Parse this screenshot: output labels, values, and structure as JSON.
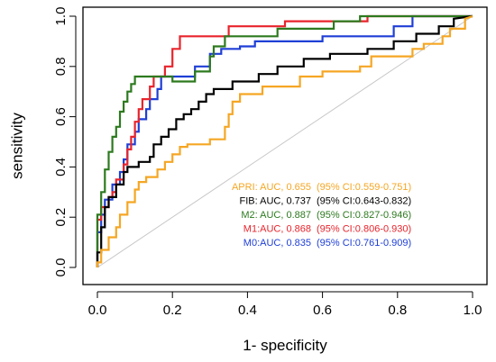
{
  "chart_data": {
    "type": "line",
    "xlabel": "1- specificity",
    "ylabel": "sensitivity",
    "xlim": [
      0,
      1
    ],
    "ylim": [
      0,
      1
    ],
    "x_ticks": [
      "0.0",
      "0.2",
      "0.4",
      "0.6",
      "0.8",
      "1.0"
    ],
    "y_ticks": [
      "0.0",
      "0.2",
      "0.4",
      "0.6",
      "0.8",
      "1.0"
    ],
    "grid": false,
    "legend_position": "bottom-right",
    "reference_line": {
      "from": [
        0,
        0
      ],
      "to": [
        1,
        1
      ],
      "color": "#c8c8c8"
    },
    "series": [
      {
        "label": "APRI: AUC, 0.655",
        "ci": "(95% CI:0.559-0.751)",
        "color": "#f5a623",
        "points": [
          [
            0,
            0
          ],
          [
            0,
            0.02
          ],
          [
            0.01,
            0.02
          ],
          [
            0.01,
            0.07
          ],
          [
            0.03,
            0.07
          ],
          [
            0.03,
            0.12
          ],
          [
            0.05,
            0.12
          ],
          [
            0.05,
            0.16
          ],
          [
            0.06,
            0.16
          ],
          [
            0.06,
            0.21
          ],
          [
            0.08,
            0.21
          ],
          [
            0.08,
            0.26
          ],
          [
            0.1,
            0.26
          ],
          [
            0.1,
            0.31
          ],
          [
            0.11,
            0.31
          ],
          [
            0.11,
            0.34
          ],
          [
            0.13,
            0.34
          ],
          [
            0.13,
            0.36
          ],
          [
            0.16,
            0.36
          ],
          [
            0.16,
            0.39
          ],
          [
            0.18,
            0.39
          ],
          [
            0.18,
            0.42
          ],
          [
            0.2,
            0.42
          ],
          [
            0.2,
            0.45
          ],
          [
            0.22,
            0.45
          ],
          [
            0.22,
            0.48
          ],
          [
            0.24,
            0.48
          ],
          [
            0.24,
            0.49
          ],
          [
            0.3,
            0.49
          ],
          [
            0.3,
            0.51
          ],
          [
            0.34,
            0.51
          ],
          [
            0.34,
            0.56
          ],
          [
            0.35,
            0.56
          ],
          [
            0.35,
            0.61
          ],
          [
            0.36,
            0.61
          ],
          [
            0.36,
            0.66
          ],
          [
            0.38,
            0.66
          ],
          [
            0.38,
            0.69
          ],
          [
            0.44,
            0.69
          ],
          [
            0.44,
            0.72
          ],
          [
            0.54,
            0.72
          ],
          [
            0.54,
            0.76
          ],
          [
            0.6,
            0.76
          ],
          [
            0.6,
            0.78
          ],
          [
            0.7,
            0.78
          ],
          [
            0.7,
            0.8
          ],
          [
            0.73,
            0.8
          ],
          [
            0.73,
            0.84
          ],
          [
            0.84,
            0.84
          ],
          [
            0.84,
            0.87
          ],
          [
            0.87,
            0.87
          ],
          [
            0.87,
            0.89
          ],
          [
            0.92,
            0.89
          ],
          [
            0.92,
            0.92
          ],
          [
            0.94,
            0.92
          ],
          [
            0.94,
            0.95
          ],
          [
            0.98,
            0.95
          ],
          [
            0.98,
            0.99
          ],
          [
            1,
            1
          ]
        ]
      },
      {
        "label": "FIB: AUC, 0.737",
        "ci": "(95% CI:0.643-0.832)",
        "color": "#000000",
        "points": [
          [
            0,
            0
          ],
          [
            0,
            0.06
          ],
          [
            0.01,
            0.06
          ],
          [
            0.01,
            0.16
          ],
          [
            0.02,
            0.16
          ],
          [
            0.02,
            0.24
          ],
          [
            0.03,
            0.24
          ],
          [
            0.03,
            0.28
          ],
          [
            0.05,
            0.28
          ],
          [
            0.05,
            0.33
          ],
          [
            0.07,
            0.33
          ],
          [
            0.07,
            0.38
          ],
          [
            0.08,
            0.38
          ],
          [
            0.08,
            0.4
          ],
          [
            0.11,
            0.4
          ],
          [
            0.11,
            0.42
          ],
          [
            0.14,
            0.42
          ],
          [
            0.14,
            0.44
          ],
          [
            0.15,
            0.44
          ],
          [
            0.15,
            0.49
          ],
          [
            0.17,
            0.49
          ],
          [
            0.17,
            0.52
          ],
          [
            0.19,
            0.52
          ],
          [
            0.19,
            0.55
          ],
          [
            0.21,
            0.55
          ],
          [
            0.21,
            0.59
          ],
          [
            0.23,
            0.59
          ],
          [
            0.23,
            0.61
          ],
          [
            0.25,
            0.61
          ],
          [
            0.25,
            0.63
          ],
          [
            0.27,
            0.63
          ],
          [
            0.27,
            0.66
          ],
          [
            0.29,
            0.66
          ],
          [
            0.29,
            0.69
          ],
          [
            0.31,
            0.69
          ],
          [
            0.31,
            0.71
          ],
          [
            0.36,
            0.71
          ],
          [
            0.36,
            0.74
          ],
          [
            0.43,
            0.74
          ],
          [
            0.43,
            0.77
          ],
          [
            0.48,
            0.77
          ],
          [
            0.48,
            0.8
          ],
          [
            0.55,
            0.8
          ],
          [
            0.55,
            0.83
          ],
          [
            0.62,
            0.83
          ],
          [
            0.62,
            0.85
          ],
          [
            0.72,
            0.85
          ],
          [
            0.72,
            0.87
          ],
          [
            0.79,
            0.87
          ],
          [
            0.79,
            0.9
          ],
          [
            0.85,
            0.9
          ],
          [
            0.85,
            0.93
          ],
          [
            0.91,
            0.93
          ],
          [
            0.91,
            0.96
          ],
          [
            0.95,
            0.96
          ],
          [
            0.95,
            0.99
          ],
          [
            1,
            1
          ]
        ]
      },
      {
        "label": "M2: AUC, 0.887",
        "ci": "(95% CI:0.827-0.946)",
        "color": "#2d7a1f",
        "points": [
          [
            0,
            0
          ],
          [
            0,
            0.21
          ],
          [
            0.01,
            0.21
          ],
          [
            0.01,
            0.3
          ],
          [
            0.02,
            0.3
          ],
          [
            0.02,
            0.39
          ],
          [
            0.03,
            0.39
          ],
          [
            0.03,
            0.46
          ],
          [
            0.04,
            0.46
          ],
          [
            0.04,
            0.52
          ],
          [
            0.05,
            0.52
          ],
          [
            0.05,
            0.56
          ],
          [
            0.06,
            0.56
          ],
          [
            0.06,
            0.62
          ],
          [
            0.07,
            0.62
          ],
          [
            0.07,
            0.66
          ],
          [
            0.08,
            0.66
          ],
          [
            0.08,
            0.7
          ],
          [
            0.09,
            0.7
          ],
          [
            0.09,
            0.73
          ],
          [
            0.1,
            0.73
          ],
          [
            0.1,
            0.76
          ],
          [
            0.2,
            0.76
          ],
          [
            0.2,
            0.74
          ],
          [
            0.26,
            0.74
          ],
          [
            0.26,
            0.78
          ],
          [
            0.3,
            0.78
          ],
          [
            0.3,
            0.84
          ],
          [
            0.31,
            0.84
          ],
          [
            0.31,
            0.88
          ],
          [
            0.34,
            0.88
          ],
          [
            0.34,
            0.92
          ],
          [
            0.48,
            0.92
          ],
          [
            0.48,
            0.95
          ],
          [
            0.63,
            0.95
          ],
          [
            0.63,
            0.98
          ],
          [
            0.7,
            0.98
          ],
          [
            0.7,
            1
          ],
          [
            1,
            1
          ]
        ]
      },
      {
        "label": "M1:AUC, 0.868",
        "ci": "(95% CI:0.806-0.930)",
        "color": "#e8242c",
        "points": [
          [
            0,
            0
          ],
          [
            0,
            0.19
          ],
          [
            0.01,
            0.19
          ],
          [
            0.01,
            0.24
          ],
          [
            0.03,
            0.24
          ],
          [
            0.03,
            0.28
          ],
          [
            0.04,
            0.28
          ],
          [
            0.04,
            0.3
          ],
          [
            0.05,
            0.3
          ],
          [
            0.05,
            0.35
          ],
          [
            0.07,
            0.35
          ],
          [
            0.07,
            0.41
          ],
          [
            0.08,
            0.41
          ],
          [
            0.08,
            0.47
          ],
          [
            0.09,
            0.47
          ],
          [
            0.09,
            0.52
          ],
          [
            0.1,
            0.52
          ],
          [
            0.1,
            0.58
          ],
          [
            0.11,
            0.58
          ],
          [
            0.11,
            0.63
          ],
          [
            0.12,
            0.63
          ],
          [
            0.12,
            0.67
          ],
          [
            0.14,
            0.67
          ],
          [
            0.14,
            0.72
          ],
          [
            0.15,
            0.72
          ],
          [
            0.15,
            0.76
          ],
          [
            0.18,
            0.76
          ],
          [
            0.18,
            0.8
          ],
          [
            0.2,
            0.8
          ],
          [
            0.2,
            0.87
          ],
          [
            0.22,
            0.87
          ],
          [
            0.22,
            0.92
          ],
          [
            0.35,
            0.92
          ],
          [
            0.35,
            0.96
          ],
          [
            0.5,
            0.96
          ],
          [
            0.5,
            0.98
          ],
          [
            0.72,
            0.98
          ],
          [
            0.72,
            1
          ],
          [
            1,
            1
          ]
        ]
      },
      {
        "label": "M0:AUC, 0.835",
        "ci": "(95% CI:0.761-0.909)",
        "color": "#1f3fd6",
        "points": [
          [
            0,
            0
          ],
          [
            0,
            0.14
          ],
          [
            0.01,
            0.14
          ],
          [
            0.01,
            0.21
          ],
          [
            0.02,
            0.21
          ],
          [
            0.02,
            0.27
          ],
          [
            0.04,
            0.27
          ],
          [
            0.04,
            0.33
          ],
          [
            0.06,
            0.33
          ],
          [
            0.06,
            0.38
          ],
          [
            0.07,
            0.38
          ],
          [
            0.07,
            0.43
          ],
          [
            0.08,
            0.43
          ],
          [
            0.08,
            0.49
          ],
          [
            0.1,
            0.49
          ],
          [
            0.1,
            0.54
          ],
          [
            0.11,
            0.54
          ],
          [
            0.11,
            0.59
          ],
          [
            0.13,
            0.59
          ],
          [
            0.13,
            0.63
          ],
          [
            0.14,
            0.63
          ],
          [
            0.14,
            0.67
          ],
          [
            0.16,
            0.67
          ],
          [
            0.16,
            0.71
          ],
          [
            0.17,
            0.71
          ],
          [
            0.17,
            0.76
          ],
          [
            0.26,
            0.76
          ],
          [
            0.26,
            0.8
          ],
          [
            0.3,
            0.8
          ],
          [
            0.3,
            0.85
          ],
          [
            0.33,
            0.85
          ],
          [
            0.33,
            0.87
          ],
          [
            0.38,
            0.87
          ],
          [
            0.38,
            0.88
          ],
          [
            0.42,
            0.88
          ],
          [
            0.42,
            0.9
          ],
          [
            0.6,
            0.9
          ],
          [
            0.6,
            0.92
          ],
          [
            0.79,
            0.92
          ],
          [
            0.79,
            0.96
          ],
          [
            0.84,
            0.96
          ],
          [
            0.84,
            1
          ],
          [
            1,
            1
          ]
        ]
      }
    ]
  }
}
